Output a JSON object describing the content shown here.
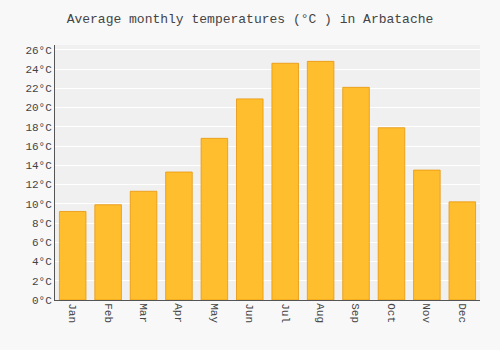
{
  "chart_data": {
    "type": "bar",
    "title": "Average monthly temperatures (°C ) in Arbatache",
    "categories": [
      "Jan",
      "Feb",
      "Mar",
      "Apr",
      "May",
      "Jun",
      "Jul",
      "Aug",
      "Sep",
      "Oct",
      "Nov",
      "Dec"
    ],
    "values": [
      9.2,
      9.9,
      11.3,
      13.3,
      16.8,
      20.9,
      24.6,
      24.8,
      22.1,
      17.9,
      13.5,
      10.2
    ],
    "color": "#FFBE2D",
    "ylim": [
      0,
      26.5
    ],
    "yticks": [
      {
        "value": 0,
        "label": "0°C"
      },
      {
        "value": 2,
        "label": "2°C"
      },
      {
        "value": 4,
        "label": "4°C"
      },
      {
        "value": 6,
        "label": "6°C"
      },
      {
        "value": 8,
        "label": "8°C"
      },
      {
        "value": 10,
        "label": "10°C"
      },
      {
        "value": 12,
        "label": "12°C"
      },
      {
        "value": 14,
        "label": "14°C"
      },
      {
        "value": 16,
        "label": "16°C"
      },
      {
        "value": 18,
        "label": "18°C"
      },
      {
        "value": 20,
        "label": "20°C"
      },
      {
        "value": 22,
        "label": "22°C"
      },
      {
        "value": 24,
        "label": "24°C"
      },
      {
        "value": 26,
        "label": "26°C"
      }
    ],
    "grid": true
  }
}
